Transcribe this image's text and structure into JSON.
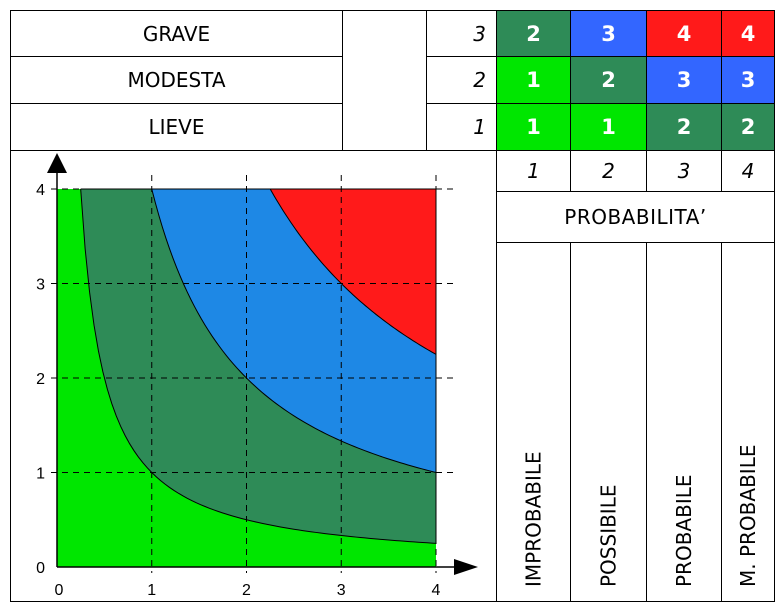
{
  "severity_rows": [
    {
      "label": "GRAVE",
      "index": "3",
      "cells": [
        {
          "value": "2",
          "color": "#2e8b57"
        },
        {
          "value": "3",
          "color": "#3366ff"
        },
        {
          "value": "4",
          "color": "#ff1a1a"
        },
        {
          "value": "4",
          "color": "#ff1a1a"
        }
      ]
    },
    {
      "label": "MODESTA",
      "index": "2",
      "cells": [
        {
          "value": "1",
          "color": "#00e600"
        },
        {
          "value": "2",
          "color": "#2e8b57"
        },
        {
          "value": "3",
          "color": "#3366ff"
        },
        {
          "value": "3",
          "color": "#3366ff"
        }
      ]
    },
    {
      "label": "LIEVE",
      "index": "1",
      "cells": [
        {
          "value": "1",
          "color": "#00e600"
        },
        {
          "value": "1",
          "color": "#00e600"
        },
        {
          "value": "2",
          "color": "#2e8b57"
        },
        {
          "value": "2",
          "color": "#2e8b57"
        }
      ]
    }
  ],
  "probability_indices": [
    "1",
    "2",
    "3",
    "4"
  ],
  "probability_title": "PROBABILITA’",
  "probability_labels": [
    "IMPROBABILE",
    "POSSIBILE",
    "PROBABILE",
    "M. PROBABILE"
  ],
  "chart_data": {
    "type": "area",
    "x_ticks": [
      "0",
      "1",
      "2",
      "3",
      "4"
    ],
    "y_ticks": [
      "0",
      "1",
      "2",
      "3",
      "4"
    ],
    "xlim": [
      0,
      4
    ],
    "ylim": [
      0,
      4
    ],
    "grid": true,
    "regions": [
      {
        "risk": 1,
        "color": "#00e600",
        "boundary": "x*y <= 1"
      },
      {
        "risk": 2,
        "color": "#2e8b57",
        "boundary": "1 < x*y <= 4"
      },
      {
        "risk": 3,
        "color": "#1e88e5",
        "boundary": "4 < x*y <= 9"
      },
      {
        "risk": 4,
        "color": "#ff1a1a",
        "boundary": "x*y > 9"
      }
    ]
  }
}
